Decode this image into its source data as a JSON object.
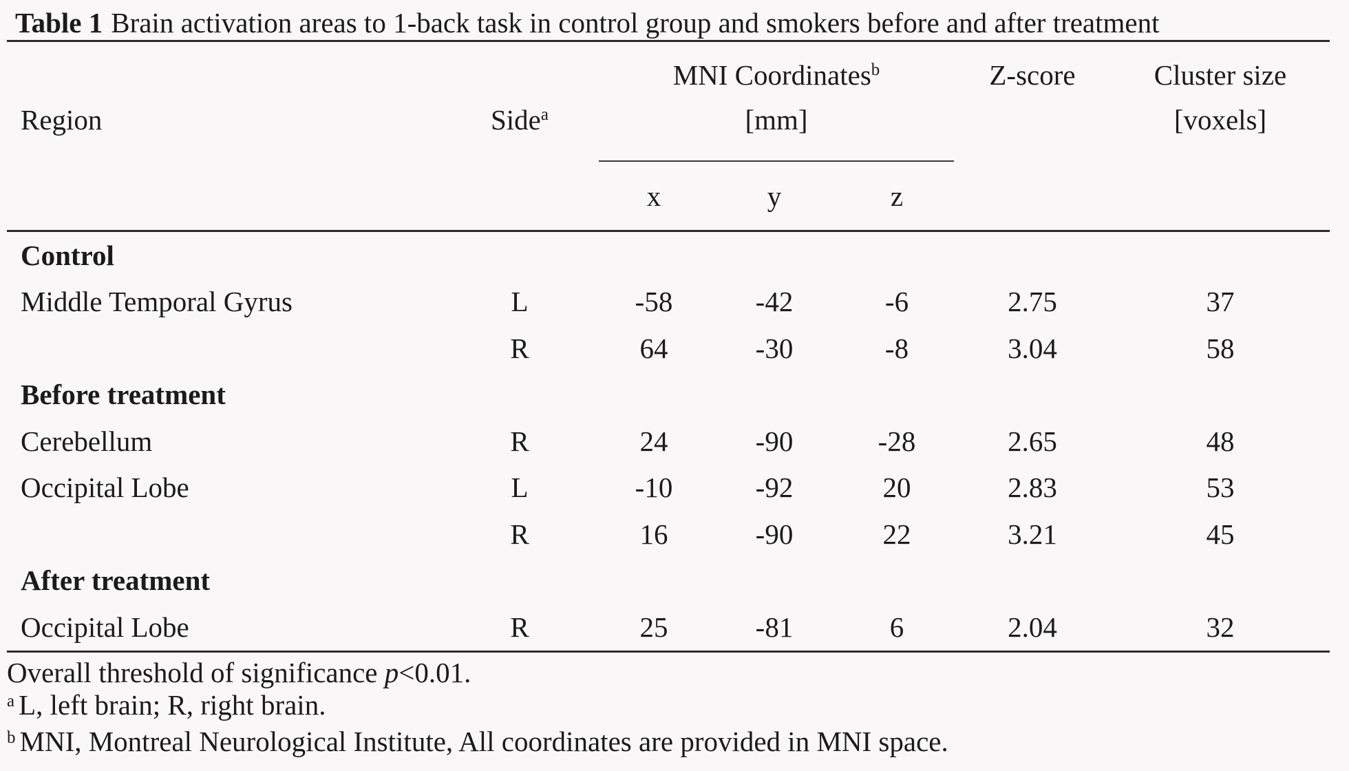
{
  "title": {
    "label": "Table 1",
    "text": "Brain activation areas to 1-back task in control group and smokers before and after treatment"
  },
  "header": {
    "region": "Region",
    "side": "Side",
    "side_sup": "a",
    "mni": "MNI Coordinates",
    "mni_sup": "b",
    "mni_unit": "[mm]",
    "col_x": "x",
    "col_y": "y",
    "col_z": "z",
    "zscore": "Z-score",
    "cluster": "Cluster size",
    "cluster_unit": "[voxels]"
  },
  "rows": [
    {
      "type": "section",
      "region": "Control"
    },
    {
      "type": "data",
      "region": "Middle Temporal Gyrus",
      "side": "L",
      "x": "-58",
      "y": "-42",
      "z": "-6",
      "zscore": "2.75",
      "cluster": "37"
    },
    {
      "type": "data",
      "region": "",
      "side": "R",
      "x": "64",
      "y": "-30",
      "z": "-8",
      "zscore": "3.04",
      "cluster": "58"
    },
    {
      "type": "section",
      "region": "Before treatment"
    },
    {
      "type": "data",
      "region": "Cerebellum",
      "side": "R",
      "x": "24",
      "y": "-90",
      "z": "-28",
      "zscore": "2.65",
      "cluster": "48"
    },
    {
      "type": "data",
      "region": "Occipital Lobe",
      "side": "L",
      "x": "-10",
      "y": "-92",
      "z": "20",
      "zscore": "2.83",
      "cluster": "53"
    },
    {
      "type": "data",
      "region": "",
      "side": "R",
      "x": "16",
      "y": "-90",
      "z": "22",
      "zscore": "3.21",
      "cluster": "45"
    },
    {
      "type": "section",
      "region": "After treatment"
    },
    {
      "type": "data",
      "region": "Occipital Lobe",
      "side": "R",
      "x": "25",
      "y": "-81",
      "z": "6",
      "zscore": "2.04",
      "cluster": "32"
    }
  ],
  "footnotes": {
    "threshold_prefix": "Overall threshold of significance ",
    "threshold_p": "p",
    "threshold_suffix": "<0.01.",
    "note_a_sup": "a",
    "note_a": "L, left brain; R, right brain.",
    "note_b_sup": "b",
    "note_b": "MNI, Montreal Neurological Institute, All coordinates are provided in MNI space."
  },
  "colors": {
    "background": "#f9f7f8",
    "text": "#1b1b1b",
    "rule": "#2b2b2b"
  }
}
